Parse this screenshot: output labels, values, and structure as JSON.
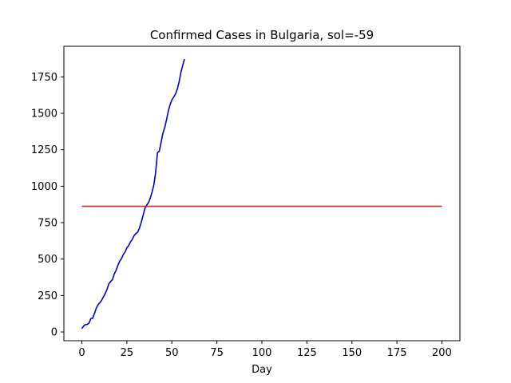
{
  "chart_data": {
    "type": "line",
    "title": "Confirmed Cases in Bulgaria, sol=-59",
    "xlabel": "Day",
    "ylabel": "",
    "xlim": [
      -10,
      210
    ],
    "ylim": [
      -60,
      1960
    ],
    "xticks": [
      0,
      25,
      50,
      75,
      100,
      125,
      150,
      175,
      200
    ],
    "yticks": [
      0,
      250,
      500,
      750,
      1000,
      1250,
      1500,
      1750
    ],
    "grid": false,
    "series": [
      {
        "color": "#0000cc",
        "x": [
          0,
          1,
          2,
          3,
          4,
          5,
          6,
          7,
          8,
          9,
          10,
          11,
          12,
          13,
          14,
          15,
          16,
          17,
          18,
          19,
          20,
          21,
          22,
          23,
          24,
          25,
          26,
          27,
          28,
          29,
          30,
          31,
          32,
          33,
          34,
          35,
          36,
          37,
          38,
          39,
          40,
          41,
          42,
          43,
          44,
          45,
          46,
          47,
          48,
          49,
          50,
          51,
          52,
          53,
          54,
          55,
          56,
          57
        ],
        "y": [
          23,
          41,
          51,
          52,
          62,
          92,
          94,
          127,
          163,
          187,
          201,
          218,
          242,
          264,
          293,
          331,
          346,
          359,
          399,
          422,
          457,
          485,
          503,
          531,
          549,
          577,
          593,
          618,
          635,
          661,
          675,
          685,
          713,
          753,
          800,
          847,
          870,
          887,
          918,
          960,
          1010,
          1097,
          1230,
          1240,
          1300,
          1363,
          1400,
          1455,
          1515,
          1560,
          1592,
          1611,
          1632,
          1665,
          1715,
          1780,
          1828,
          1872
        ]
      },
      {
        "color": "#d62728",
        "x": [
          0,
          200
        ],
        "y": [
          862,
          862
        ]
      }
    ]
  }
}
